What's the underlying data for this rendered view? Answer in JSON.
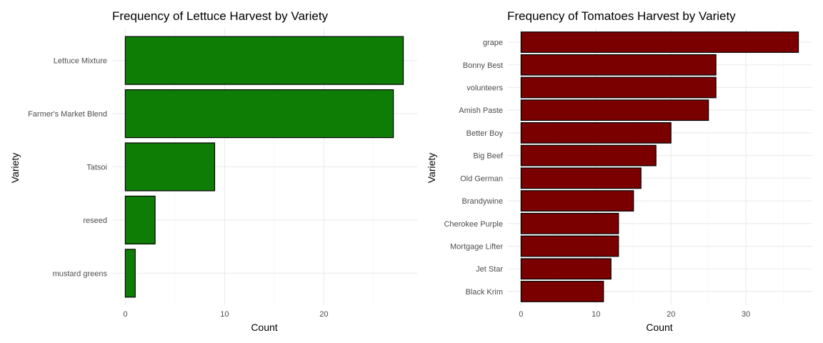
{
  "chart_data": [
    {
      "type": "bar",
      "orientation": "horizontal",
      "title": "Frequency of Lettuce Harvest by Variety",
      "xlabel": "Count",
      "ylabel": "Variety",
      "categories": [
        "Lettuce Mixture",
        "Farmer's Market Blend",
        "Tatsoi",
        "reseed",
        "mustard greens"
      ],
      "values": [
        28,
        27,
        9,
        3,
        1
      ],
      "xlim": [
        0,
        29.4
      ],
      "xticks": [
        0,
        10,
        20
      ],
      "fill_color": "#0e7d06",
      "grid": true,
      "legend": "none"
    },
    {
      "type": "bar",
      "orientation": "horizontal",
      "title": "Frequency of Tomatoes Harvest by Variety",
      "xlabel": "Count",
      "ylabel": "Variety",
      "categories": [
        "grape",
        "Bonny Best",
        "volunteers",
        "Amish Paste",
        "Better Boy",
        "Big Beef",
        "Old German",
        "Brandywine",
        "Cherokee Purple",
        "Mortgage Lifter",
        "Jet Star",
        "Black Krim"
      ],
      "values": [
        37,
        26,
        26,
        25,
        20,
        18,
        16,
        15,
        13,
        13,
        12,
        11
      ],
      "xlim": [
        0,
        38.85
      ],
      "xticks": [
        0,
        10,
        20,
        30
      ],
      "fill_color": "#7a0000",
      "grid": true,
      "legend": "none"
    }
  ]
}
